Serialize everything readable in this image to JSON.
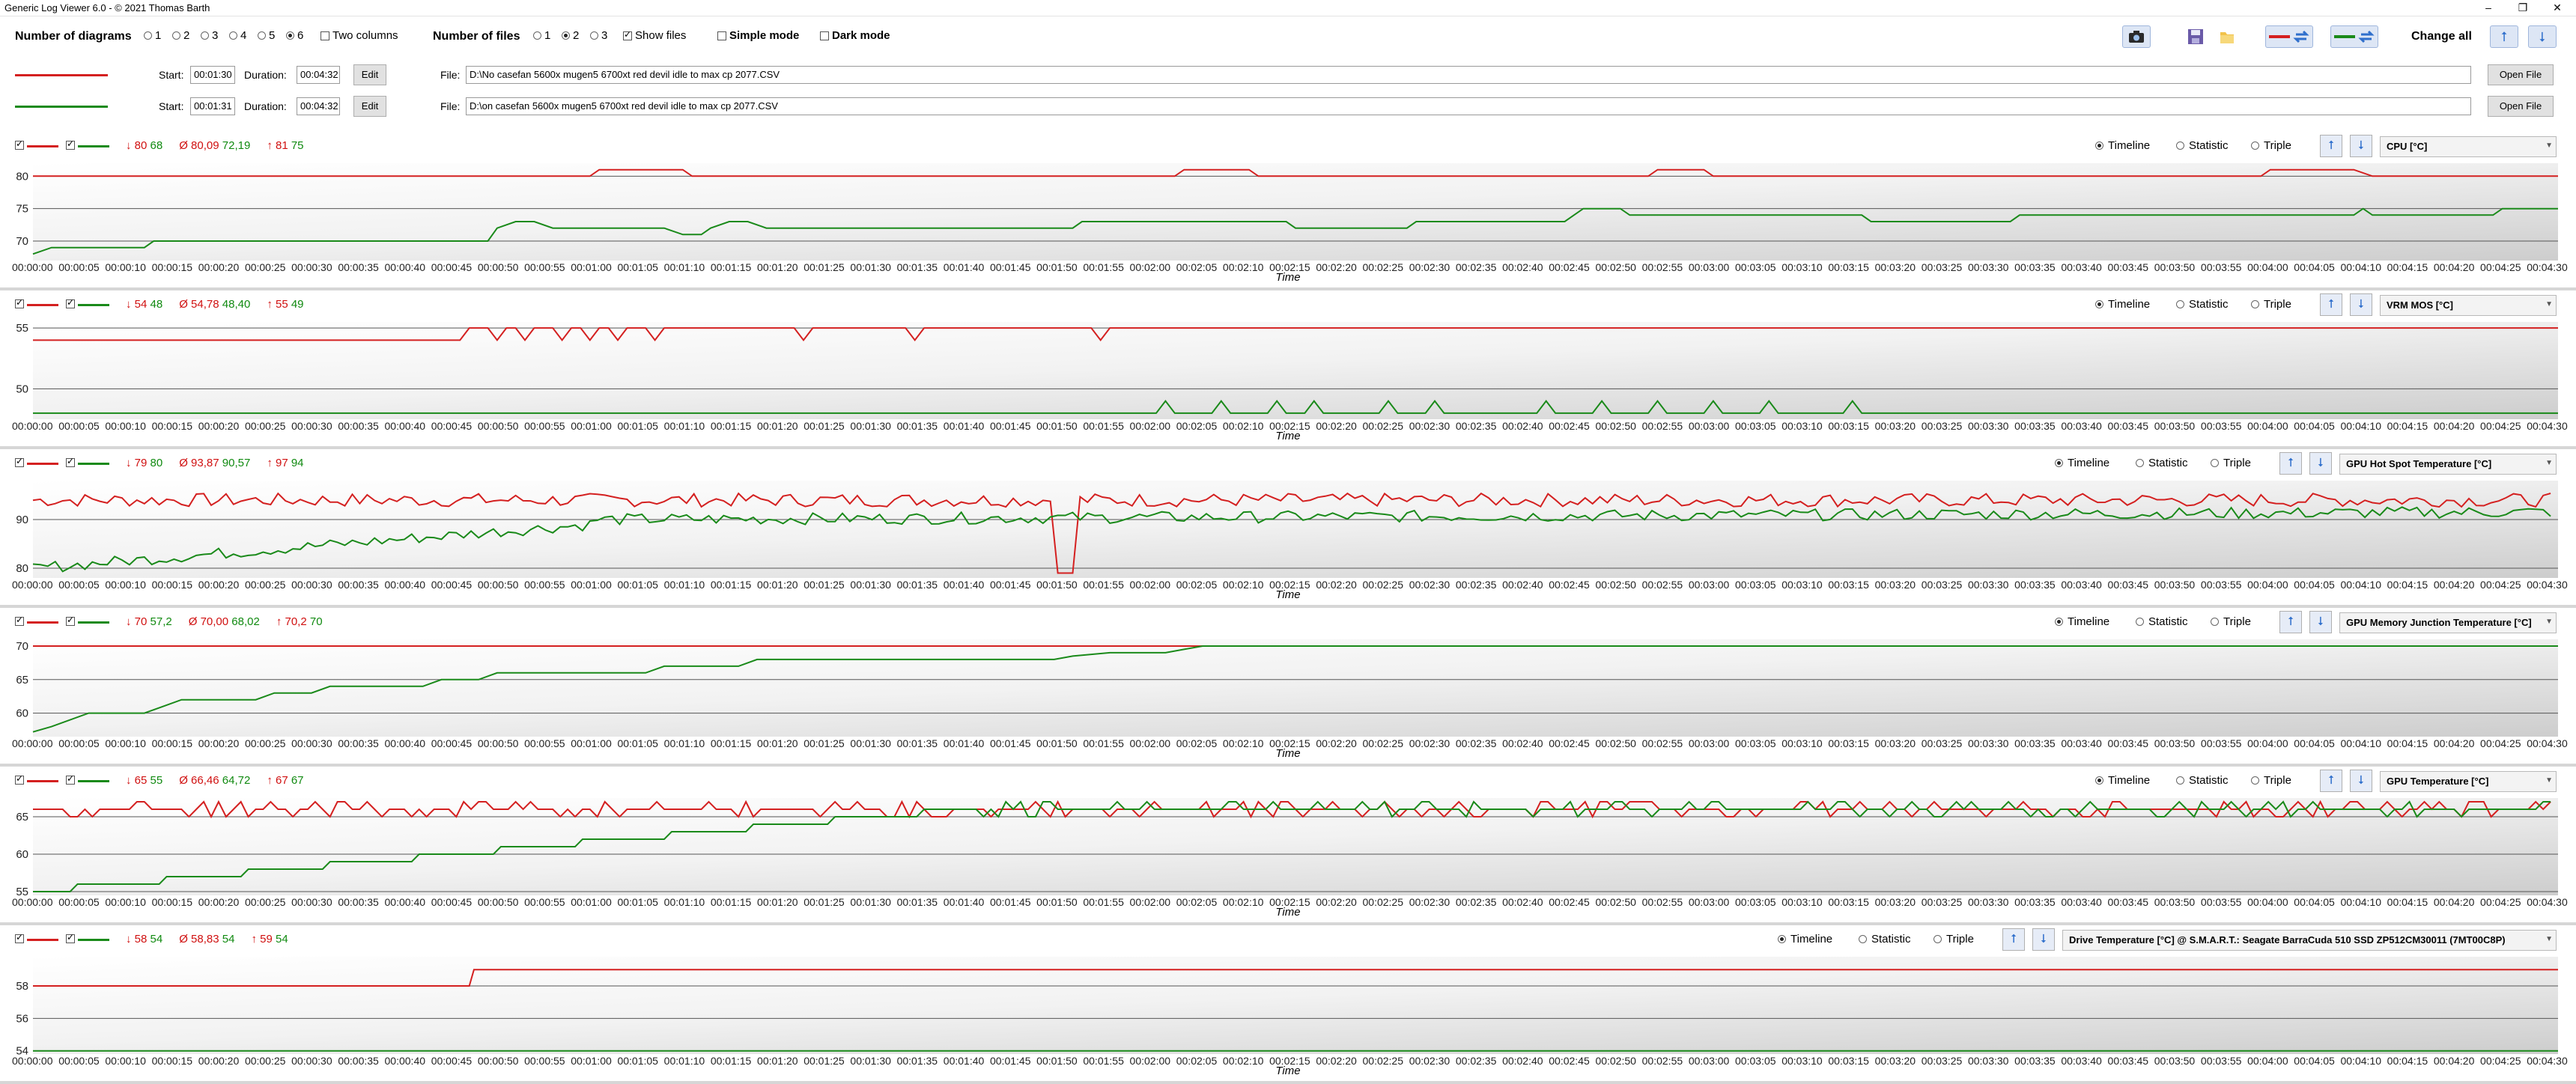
{
  "window": {
    "title": "Generic Log Viewer 6.0 - © 2021 Thomas Barth",
    "minimize": "–",
    "maximize": "❐",
    "close": "✕"
  },
  "toolbar": {
    "num_diagrams_label": "Number of diagrams",
    "diagram_options": [
      "1",
      "2",
      "3",
      "4",
      "5",
      "6"
    ],
    "diagram_selected": "6",
    "two_columns_label": "Two columns",
    "num_files_label": "Number of files",
    "file_options": [
      "1",
      "2",
      "3"
    ],
    "file_selected": "2",
    "show_files_label": "Show files",
    "simple_mode_label": "Simple mode",
    "dark_mode_label": "Dark mode",
    "change_all_label": "Change all"
  },
  "files": [
    {
      "color": "#d42020",
      "start_label": "Start:",
      "start": "00:01:30",
      "duration_label": "Duration:",
      "duration": "00:04:32",
      "edit": "Edit",
      "file_label": "File:",
      "path": "D:\\No casefan 5600x mugen5 6700xt red devil idle to max cp 2077.CSV",
      "open": "Open File"
    },
    {
      "color": "#1a8a1a",
      "start_label": "Start:",
      "start": "00:01:31",
      "duration_label": "Duration:",
      "duration": "00:04:32",
      "edit": "Edit",
      "file_label": "File:",
      "path": "D:\\on casefan 5600x mugen5 6700xt red devil idle to max cp 2077.CSV",
      "open": "Open File"
    }
  ],
  "mode_labels": {
    "timeline": "Timeline",
    "statistic": "Statistic",
    "triple": "Triple"
  },
  "x_axis": {
    "label": "Time",
    "ticks": [
      "00:00:00",
      "00:00:05",
      "00:00:10",
      "00:00:15",
      "00:00:20",
      "00:00:25",
      "00:00:30",
      "00:00:35",
      "00:00:40",
      "00:00:45",
      "00:00:50",
      "00:00:55",
      "00:01:00",
      "00:01:05",
      "00:01:10",
      "00:01:15",
      "00:01:20",
      "00:01:25",
      "00:01:30",
      "00:01:35",
      "00:01:40",
      "00:01:45",
      "00:01:50",
      "00:01:55",
      "00:02:00",
      "00:02:05",
      "00:02:10",
      "00:02:15",
      "00:02:20",
      "00:02:25",
      "00:02:30",
      "00:02:35",
      "00:02:40",
      "00:02:45",
      "00:02:50",
      "00:02:55",
      "00:03:00",
      "00:03:05",
      "00:03:10",
      "00:03:15",
      "00:03:20",
      "00:03:25",
      "00:03:30",
      "00:03:35",
      "00:03:40",
      "00:03:45",
      "00:03:50",
      "00:03:55",
      "00:04:00",
      "00:04:05",
      "00:04:10",
      "00:04:15",
      "00:04:20",
      "00:04:25",
      "00:04:30"
    ]
  },
  "chart_data": [
    {
      "type": "line",
      "sensor": "CPU [°C]",
      "stats": {
        "min": "↓ 80 68",
        "avg": "Ø 80,09 72,19",
        "max": "↑ 81 75"
      },
      "ylim": [
        67,
        82
      ],
      "yticks": [
        70,
        75,
        80
      ],
      "xlim": [
        0,
        272
      ],
      "series": [
        {
          "color": "#d42020",
          "values": [
            [
              0,
              80
            ],
            [
              60,
              80
            ],
            [
              61,
              81
            ],
            [
              70,
              81
            ],
            [
              71,
              80
            ],
            [
              123,
              80
            ],
            [
              124,
              81
            ],
            [
              131,
              81
            ],
            [
              132,
              80
            ],
            [
              174,
              80
            ],
            [
              175,
              81
            ],
            [
              180,
              81
            ],
            [
              181,
              80
            ],
            [
              240,
              80
            ],
            [
              241,
              81
            ],
            [
              250,
              81
            ],
            [
              252,
              80
            ],
            [
              272,
              80
            ]
          ]
        },
        {
          "color": "#1a8a1a",
          "values": [
            [
              0,
              68
            ],
            [
              2,
              69
            ],
            [
              12,
              69
            ],
            [
              13,
              70
            ],
            [
              49,
              70
            ],
            [
              50,
              72
            ],
            [
              52,
              73
            ],
            [
              54,
              73
            ],
            [
              56,
              72
            ],
            [
              68,
              72
            ],
            [
              70,
              71
            ],
            [
              72,
              71
            ],
            [
              73,
              72
            ],
            [
              75,
              73
            ],
            [
              77,
              73
            ],
            [
              79,
              72
            ],
            [
              112,
              72
            ],
            [
              113,
              73
            ],
            [
              135,
              73
            ],
            [
              136,
              72
            ],
            [
              148,
              72
            ],
            [
              149,
              73
            ],
            [
              165,
              73
            ],
            [
              166,
              74
            ],
            [
              167,
              75
            ],
            [
              171,
              75
            ],
            [
              172,
              74
            ],
            [
              197,
              74
            ],
            [
              198,
              73
            ],
            [
              213,
              73
            ],
            [
              214,
              74
            ],
            [
              250,
              74
            ],
            [
              251,
              75
            ],
            [
              252,
              74
            ],
            [
              265,
              74
            ],
            [
              266,
              75
            ],
            [
              272,
              75
            ]
          ]
        }
      ]
    },
    {
      "type": "line",
      "sensor": "VRM MOS [°C]",
      "stats": {
        "min": "↓ 54 48",
        "avg": "Ø 54,78 48,40",
        "max": "↑ 55 49"
      },
      "ylim": [
        47.5,
        55.5
      ],
      "yticks": [
        50,
        55
      ],
      "xlim": [
        0,
        272
      ],
      "series": [
        {
          "color": "#d42020",
          "values": [
            [
              0,
              54
            ],
            [
              46,
              54
            ],
            [
              47,
              55
            ],
            [
              49,
              55
            ],
            [
              50,
              54
            ],
            [
              51,
              55
            ],
            [
              52,
              55
            ],
            [
              53,
              54
            ],
            [
              54,
              55
            ],
            [
              56,
              55
            ],
            [
              57,
              54
            ],
            [
              58,
              55
            ],
            [
              59,
              55
            ],
            [
              60,
              54
            ],
            [
              61,
              55
            ],
            [
              62,
              55
            ],
            [
              63,
              54
            ],
            [
              64,
              55
            ],
            [
              66,
              55
            ],
            [
              67,
              54
            ],
            [
              68,
              55
            ],
            [
              82,
              55
            ],
            [
              83,
              54
            ],
            [
              84,
              55
            ],
            [
              94,
              55
            ],
            [
              95,
              54
            ],
            [
              96,
              55
            ],
            [
              114,
              55
            ],
            [
              115,
              54
            ],
            [
              116,
              55
            ],
            [
              272,
              55
            ]
          ]
        },
        {
          "color": "#1a8a1a",
          "values": [
            [
              0,
              48
            ],
            [
              121,
              48
            ],
            [
              122,
              49
            ],
            [
              123,
              48
            ],
            [
              127,
              48
            ],
            [
              128,
              49
            ],
            [
              129,
              48
            ],
            [
              133,
              48
            ],
            [
              134,
              49
            ],
            [
              135,
              48
            ],
            [
              137,
              48
            ],
            [
              138,
              49
            ],
            [
              139,
              48
            ],
            [
              145,
              48
            ],
            [
              146,
              49
            ],
            [
              147,
              48
            ],
            [
              150,
              48
            ],
            [
              151,
              49
            ],
            [
              152,
              48
            ],
            [
              162,
              48
            ],
            [
              163,
              49
            ],
            [
              164,
              48
            ],
            [
              168,
              48
            ],
            [
              169,
              49
            ],
            [
              170,
              48
            ],
            [
              174,
              48
            ],
            [
              175,
              49
            ],
            [
              176,
              48
            ],
            [
              180,
              48
            ],
            [
              181,
              49
            ],
            [
              182,
              48
            ],
            [
              186,
              48
            ],
            [
              187,
              49
            ],
            [
              188,
              48
            ],
            [
              195,
              48
            ],
            [
              196,
              49
            ],
            [
              197,
              48
            ],
            [
              272,
              48
            ]
          ]
        }
      ]
    },
    {
      "type": "line",
      "sensor": "GPU Hot Spot Temperature [°C]",
      "stats": {
        "min": "↓ 79 80",
        "avg": "Ø 93,87 90,57",
        "max": "↑ 97 94"
      },
      "ylim": [
        78,
        98
      ],
      "yticks": [
        80,
        90
      ],
      "xlim": [
        0,
        272
      ],
      "series": [
        {
          "color": "#d42020",
          "generator": "noisy",
          "base": 94,
          "amp": 1.4,
          "dip": [
            111,
            79
          ]
        },
        {
          "color": "#1a8a1a",
          "generator": "rise",
          "from": 80,
          "to": 92,
          "rise_end": 60,
          "amp": 1.2
        }
      ]
    },
    {
      "type": "line",
      "sensor": "GPU Memory Junction Temperature [°C]",
      "stats": {
        "min": "↓ 70 57,2",
        "avg": "Ø 70,00 68,02",
        "max": "↑ 70,2 70"
      },
      "ylim": [
        56.5,
        71
      ],
      "yticks": [
        60,
        65,
        70
      ],
      "xlim": [
        0,
        272
      ],
      "series": [
        {
          "color": "#d42020",
          "values": [
            [
              0,
              70
            ],
            [
              272,
              70
            ]
          ]
        },
        {
          "color": "#1a8a1a",
          "values": [
            [
              0,
              57.2
            ],
            [
              2,
              58
            ],
            [
              6,
              60
            ],
            [
              12,
              60
            ],
            [
              14,
              61
            ],
            [
              16,
              62
            ],
            [
              24,
              62
            ],
            [
              26,
              63
            ],
            [
              30,
              63
            ],
            [
              32,
              64
            ],
            [
              42,
              64
            ],
            [
              44,
              65
            ],
            [
              48,
              65
            ],
            [
              50,
              66
            ],
            [
              66,
              66
            ],
            [
              68,
              67
            ],
            [
              76,
              67
            ],
            [
              78,
              68
            ],
            [
              110,
              68
            ],
            [
              112,
              68.5
            ],
            [
              116,
              69
            ],
            [
              122,
              69
            ],
            [
              124,
              69.5
            ],
            [
              126,
              70
            ],
            [
              272,
              70
            ]
          ]
        }
      ]
    },
    {
      "type": "line",
      "sensor": "GPU Temperature [°C]",
      "stats": {
        "min": "↓ 65 55",
        "avg": "Ø 66,46 64,72",
        "max": "↑ 67 67"
      },
      "ylim": [
        54.5,
        67.5
      ],
      "yticks": [
        55,
        60,
        65
      ],
      "xlim": [
        0,
        272
      ],
      "series": [
        {
          "color": "#d42020",
          "generator": "step",
          "base": 66,
          "amp": 1
        },
        {
          "color": "#1a8a1a",
          "generator": "steprise",
          "from": 55,
          "to": 66,
          "rise_end": 100,
          "amp": 1
        }
      ]
    },
    {
      "type": "line",
      "sensor": "Drive Temperature [°C] @ S.M.A.R.T.: Seagate BarraCuda 510 SSD ZP512CM30011 (7MT00C8P)",
      "stats": {
        "min": "↓ 58 54",
        "avg": "Ø 58,83 54",
        "max": "↑ 59 54"
      },
      "ylim": [
        53.8,
        59.8
      ],
      "yticks": [
        54,
        56,
        58
      ],
      "xlim": [
        0,
        272
      ],
      "series": [
        {
          "color": "#d42020",
          "values": [
            [
              0,
              58
            ],
            [
              47,
              58
            ],
            [
              47.5,
              59
            ],
            [
              272,
              59
            ]
          ]
        },
        {
          "color": "#1a8a1a",
          "values": [
            [
              0,
              54
            ],
            [
              272,
              54
            ]
          ]
        }
      ]
    }
  ]
}
